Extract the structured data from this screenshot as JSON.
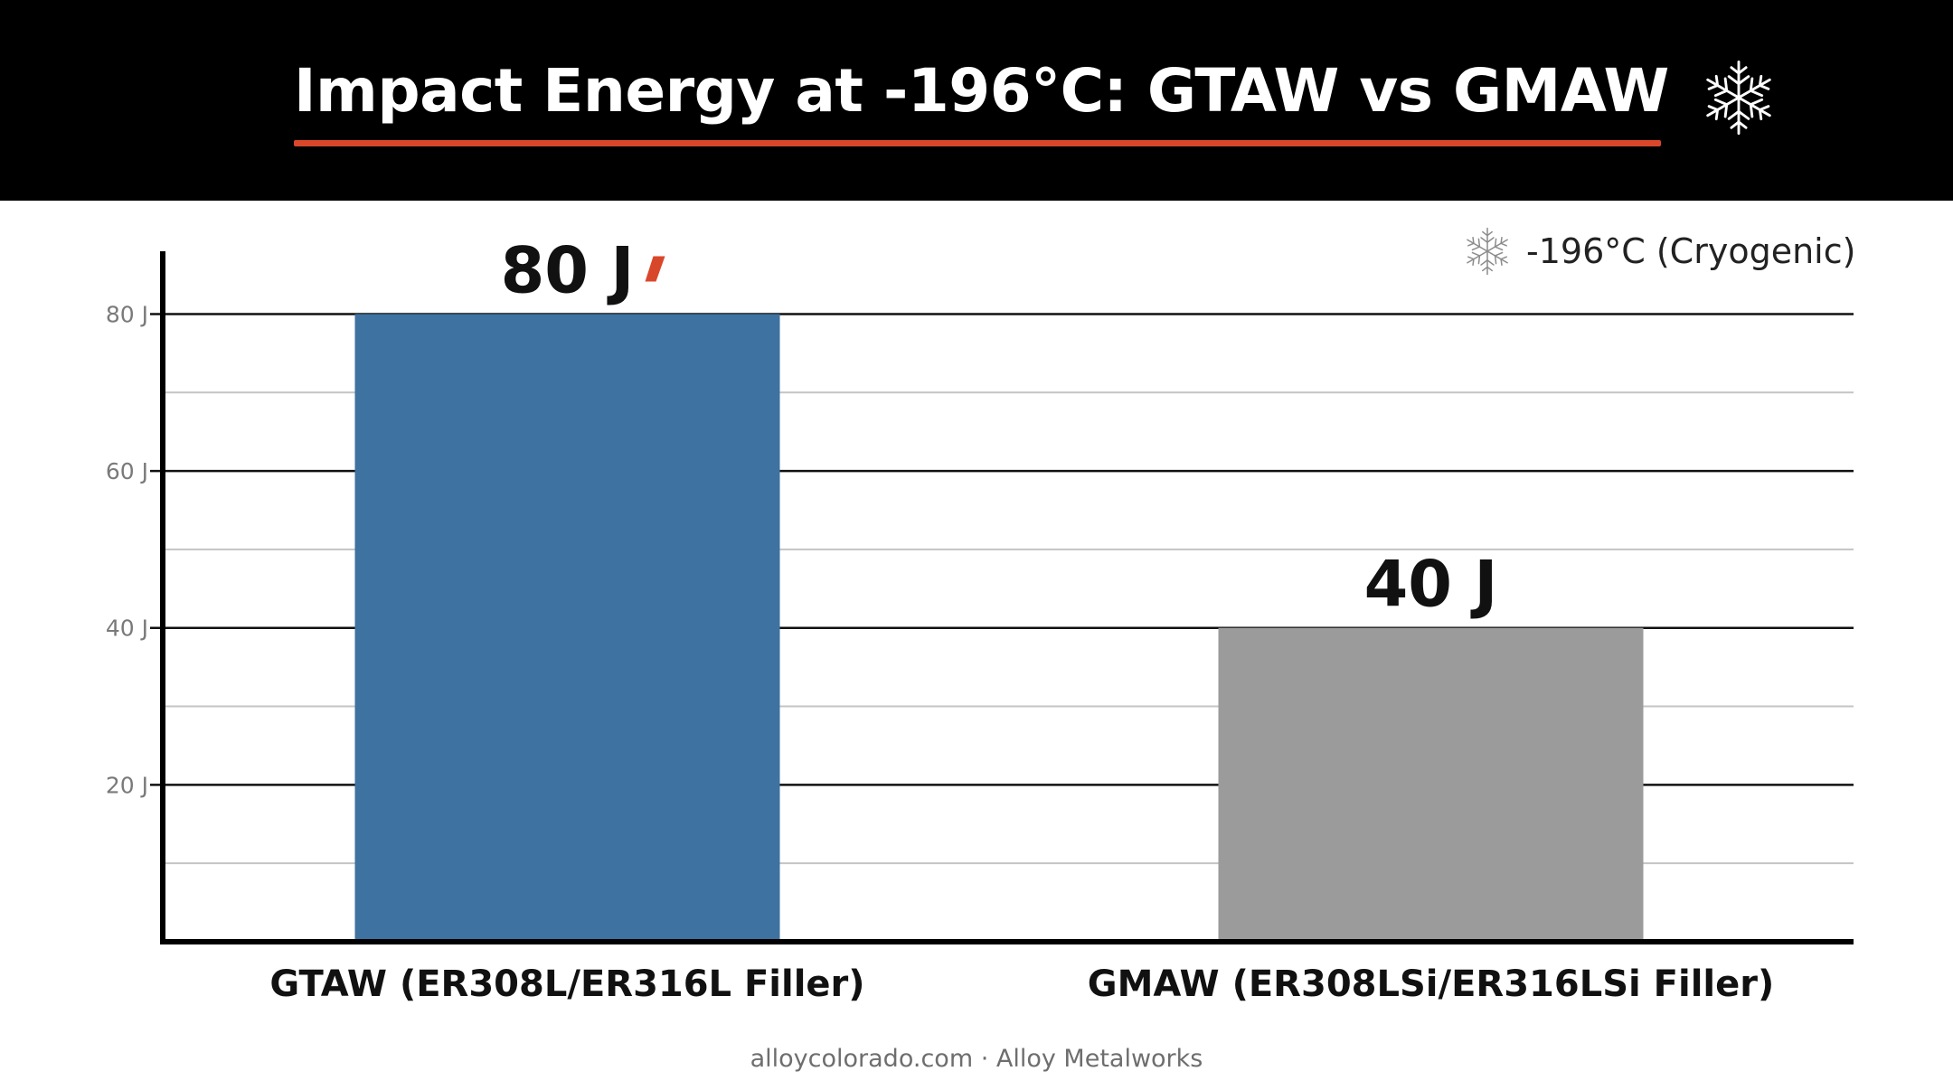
{
  "header": {
    "title": "Impact Energy at -196°C: GTAW vs GMAW",
    "icon": "snowflake-icon",
    "accent_color": "#d9472b"
  },
  "legend": {
    "icon": "snowflake-icon",
    "label": "-196°C (Cryogenic)"
  },
  "chart_data": {
    "type": "bar",
    "title": "Impact Energy at -196°C: GTAW vs GMAW",
    "xlabel": "",
    "ylabel": "",
    "categories": [
      "GTAW (ER308L/ER316L Filler)",
      "GMAW (ER308LSi/ER316LSi Filler)"
    ],
    "values": [
      80,
      40
    ],
    "value_labels": [
      "80 J",
      "40 J"
    ],
    "bar_colors": [
      "#3e72a0",
      "#9b9b9b"
    ],
    "ylim": [
      0,
      88
    ],
    "yticks": [
      20,
      40,
      60,
      80
    ],
    "ytick_labels": [
      "20 J",
      "40 J",
      "60 J",
      "80 J"
    ],
    "minor_gridlines": [
      10,
      30,
      50,
      70
    ],
    "grid": true,
    "legend_position": "top-right"
  },
  "footer": {
    "text": "alloycolorado.com · Alloy Metalworks"
  }
}
